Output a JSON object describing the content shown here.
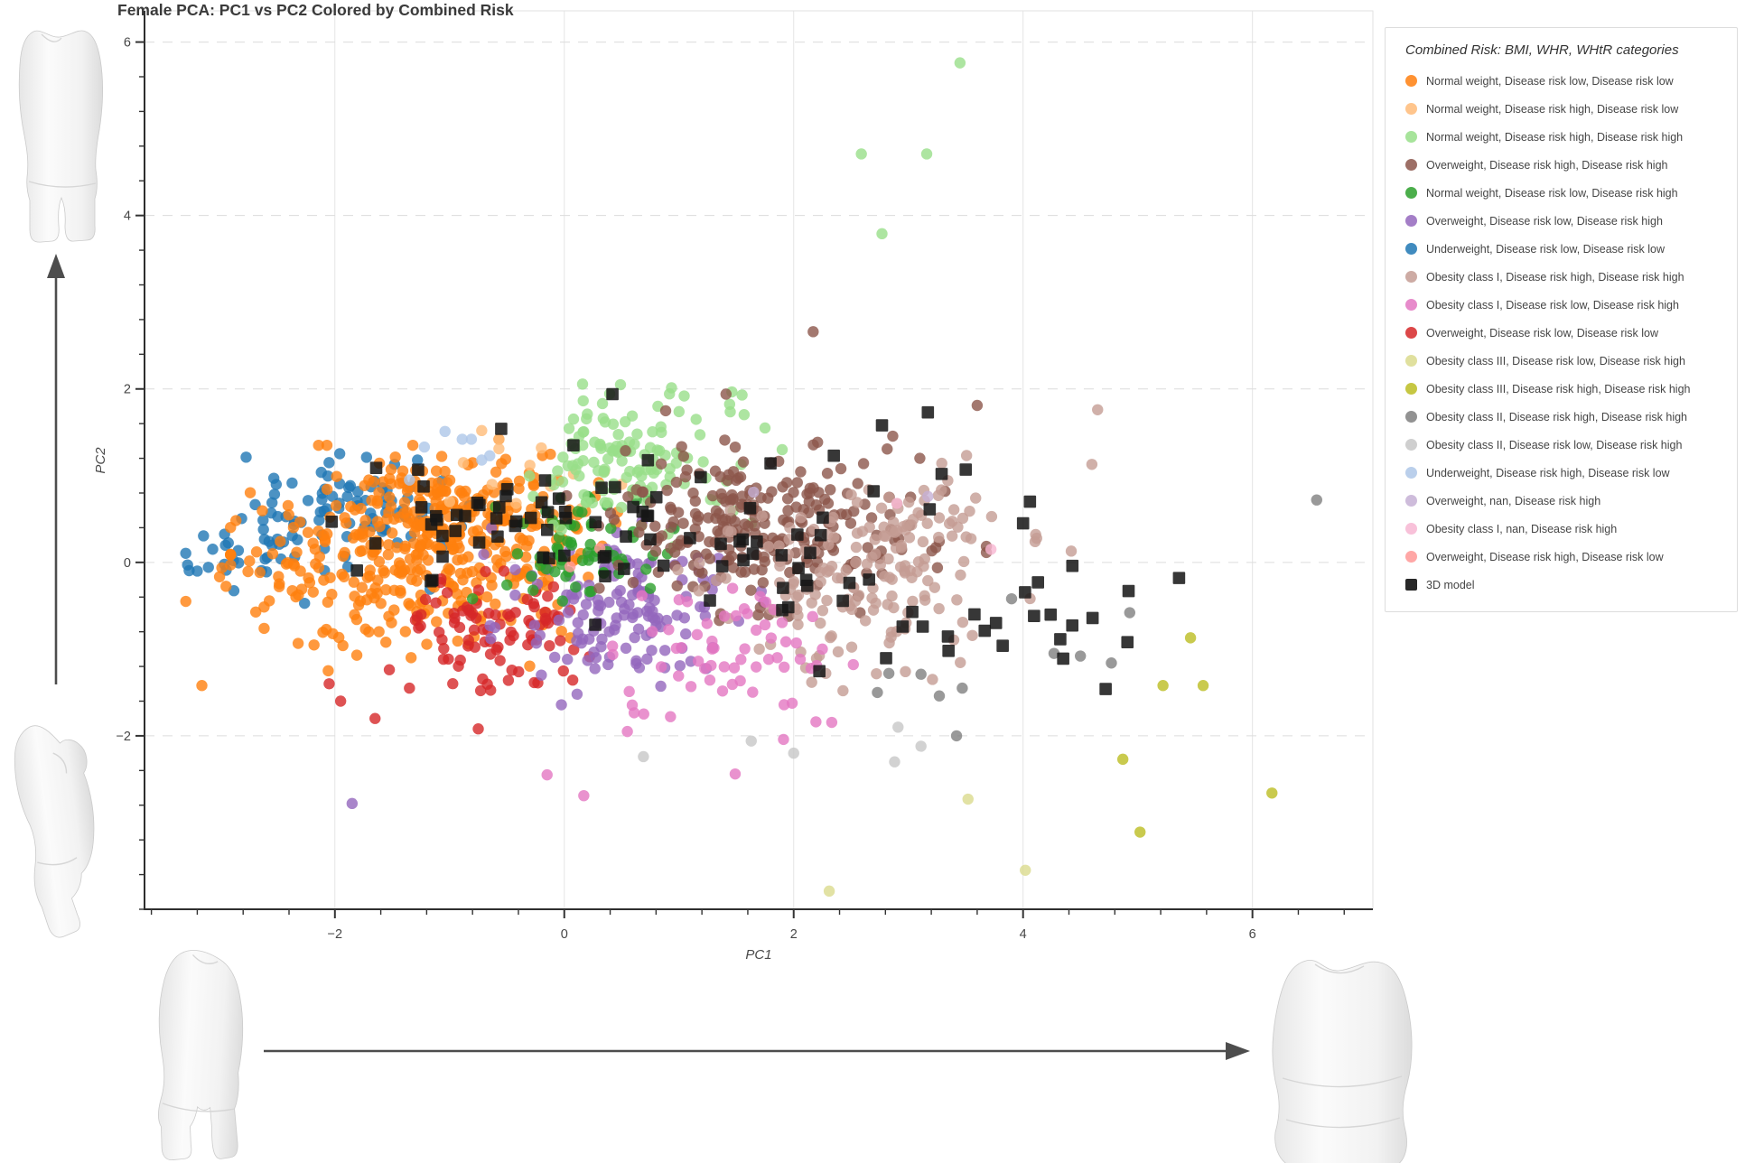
{
  "chart_data": {
    "type": "scatter",
    "title": "Female PCA: PC1 vs PC2 Colored by Combined Risk",
    "legend_title": "Combined Risk: BMI, WHR, WHtR categories",
    "legend_position": "right",
    "grid": "on",
    "x_axis": {
      "label": "PC1",
      "range": [
        -3.66,
        7.05
      ],
      "minor_tick_step": 0.4,
      "grid_style": "solid",
      "major_ticks": [
        {
          "v": -2,
          "label": "−2"
        },
        {
          "v": 0,
          "label": "0"
        },
        {
          "v": 2,
          "label": "2"
        },
        {
          "v": 4,
          "label": "4"
        },
        {
          "v": 6,
          "label": "6"
        }
      ]
    },
    "y_axis": {
      "label": "PC2",
      "range": [
        -4.0,
        6.36
      ],
      "minor_tick_step": 0.4,
      "grid_style": "dashed",
      "major_ticks": [
        {
          "v": 6,
          "label": "6"
        },
        {
          "v": 4,
          "label": "4"
        },
        {
          "v": 2,
          "label": "2"
        },
        {
          "v": 0,
          "label": "0"
        },
        {
          "v": -2,
          "label": "−2"
        }
      ]
    },
    "marker_opacity": 0.8,
    "series": [
      {
        "key": "normal_low_low",
        "label": "Normal weight, Disease risk low, Disease risk low",
        "color": "#ff7f0e",
        "marker": "circle",
        "clusters": [
          [
            250,
            -1.35,
            0.05,
            0.6,
            0.5
          ],
          [
            120,
            -0.55,
            0.3,
            0.45,
            0.45
          ],
          [
            55,
            -1.05,
            0.85,
            0.5,
            0.25
          ],
          [
            30,
            -2.35,
            -0.1,
            0.33,
            0.35
          ]
        ],
        "points": [
          [
            -3.16,
            -1.42
          ],
          [
            -3.3,
            -0.45
          ],
          [
            -0.57,
            1.42
          ],
          [
            0.3,
            0.92
          ],
          [
            0.45,
            0.45
          ]
        ]
      },
      {
        "key": "normal_high_low",
        "label": "Normal weight, Disease risk high, Disease risk low",
        "color": "#ffbb78",
        "marker": "circle",
        "clusters": [],
        "points": [
          [
            -0.57,
            1.42
          ],
          [
            -0.57,
            1.31
          ],
          [
            -0.63,
            0.9
          ],
          [
            -0.88,
            1.15
          ],
          [
            -0.3,
            1.12
          ],
          [
            -0.12,
            0.88
          ],
          [
            0.08,
            1.02
          ],
          [
            -0.2,
            1.32
          ],
          [
            0.35,
            1.05
          ],
          [
            -0.42,
            0.68
          ],
          [
            0.15,
            0.62
          ],
          [
            -0.72,
            1.52
          ],
          [
            0.5,
            0.9
          ],
          [
            -1.0,
            0.7
          ]
        ]
      },
      {
        "key": "normal_high_high",
        "label": "Normal weight, Disease risk high, Disease risk high",
        "color": "#98df8a",
        "marker": "circle",
        "clusters": [
          [
            115,
            0.55,
            1.12,
            0.42,
            0.36
          ],
          [
            14,
            0.95,
            1.8,
            0.5,
            0.18
          ]
        ],
        "points": [
          [
            3.45,
            5.76
          ],
          [
            2.59,
            4.71
          ],
          [
            3.16,
            4.71
          ],
          [
            2.77,
            3.79
          ],
          [
            1.55,
            1.93
          ],
          [
            1.75,
            1.55
          ],
          [
            1.9,
            1.3
          ]
        ]
      },
      {
        "key": "over_high_high",
        "label": "Overweight, Disease risk high, Disease risk high",
        "color": "#8c564b",
        "marker": "circle",
        "clusters": [
          [
            140,
            1.45,
            0.5,
            0.55,
            0.35
          ],
          [
            90,
            2.25,
            0.18,
            0.55,
            0.38
          ],
          [
            22,
            1.7,
            1.12,
            0.5,
            0.25
          ]
        ],
        "points": [
          [
            2.17,
            2.66
          ],
          [
            3.6,
            1.81
          ],
          [
            1.41,
            1.94
          ],
          [
            3.1,
            1.2
          ],
          [
            3.32,
            0.82
          ]
        ]
      },
      {
        "key": "normal_low_high",
        "label": "Normal weight, Disease risk low, Disease risk high",
        "color": "#2ca02c",
        "marker": "circle",
        "clusters": [
          [
            60,
            0.1,
            0.22,
            0.33,
            0.32
          ]
        ],
        "points": [
          [
            -0.8,
            -0.42
          ],
          [
            -0.5,
            -0.26
          ],
          [
            -0.6,
            0.64
          ],
          [
            0.75,
            -0.3
          ],
          [
            0.9,
            0.1
          ]
        ]
      },
      {
        "key": "over_low_high",
        "label": "Overweight, Disease risk low, Disease risk high",
        "color": "#9467bd",
        "marker": "circle",
        "clusters": [
          [
            140,
            0.45,
            -0.55,
            0.5,
            0.42
          ]
        ],
        "points": [
          [
            -1.85,
            -2.78
          ],
          [
            -0.2,
            -1.3
          ],
          [
            1.3,
            -0.2
          ]
        ]
      },
      {
        "key": "under_low_low",
        "label": "Underweight, Disease risk low, Disease risk low",
        "color": "#1f77b4",
        "marker": "circle",
        "clusters": [
          [
            80,
            -1.95,
            0.6,
            0.45,
            0.3
          ],
          [
            26,
            -2.8,
            0.1,
            0.28,
            0.22
          ]
        ],
        "points": [
          [
            -1.28,
            1.18
          ],
          [
            -1.48,
            1.13
          ],
          [
            -3.2,
            -0.1
          ],
          [
            -1.17,
            -0.31
          ]
        ]
      },
      {
        "key": "ob1_high_high",
        "label": "Obesity class I, Disease risk high, Disease risk high",
        "color": "#c49c94",
        "marker": "circle",
        "clusters": [
          [
            125,
            2.55,
            -0.25,
            0.6,
            0.5
          ],
          [
            55,
            3.1,
            0.4,
            0.5,
            0.32
          ]
        ],
        "points": [
          [
            4.65,
            1.76
          ],
          [
            4.6,
            1.13
          ],
          [
            4.42,
            0.13
          ],
          [
            2.28,
            -1.28
          ],
          [
            2.43,
            -1.48
          ],
          [
            1.7,
            -1.0
          ]
        ]
      },
      {
        "key": "ob1_low_high",
        "label": "Obesity class I, Disease risk low, Disease risk high",
        "color": "#e377c2",
        "marker": "circle",
        "clusters": [
          [
            60,
            1.35,
            -1.1,
            0.45,
            0.42
          ]
        ],
        "points": [
          [
            0.17,
            -2.69
          ],
          [
            1.49,
            -2.44
          ],
          [
            2.2,
            -1.19
          ],
          [
            1.75,
            -0.72
          ],
          [
            2.25,
            -1.0
          ],
          [
            0.55,
            -1.95
          ],
          [
            -0.15,
            -2.45
          ]
        ]
      },
      {
        "key": "over_low_low",
        "label": "Overweight, Disease risk low, Disease risk low",
        "color": "#d62728",
        "marker": "circle",
        "clusters": [
          [
            90,
            -0.5,
            -0.85,
            0.42,
            0.36
          ]
        ],
        "points": [
          [
            -0.75,
            -1.92
          ],
          [
            -1.95,
            -1.6
          ],
          [
            -1.65,
            -1.8
          ],
          [
            -1.35,
            -1.45
          ],
          [
            -2.05,
            -1.4
          ]
        ]
      },
      {
        "key": "ob3_low_high",
        "label": "Obesity class III, Disease risk low, Disease risk high",
        "color": "#dbdb8d",
        "marker": "circle",
        "clusters": [],
        "points": [
          [
            3.52,
            -2.73
          ],
          [
            4.02,
            -3.55
          ],
          [
            2.31,
            -3.79
          ]
        ]
      },
      {
        "key": "ob3_high_high",
        "label": "Obesity class III, Disease risk high, Disease risk high",
        "color": "#bcbd22",
        "marker": "circle",
        "clusters": [],
        "points": [
          [
            5.46,
            -0.87
          ],
          [
            5.22,
            -1.42
          ],
          [
            5.57,
            -1.42
          ],
          [
            4.87,
            -2.27
          ],
          [
            5.02,
            -3.11
          ],
          [
            6.17,
            -2.66
          ]
        ]
      },
      {
        "key": "ob2_high_high",
        "label": "Obesity class II, Disease risk high, Disease risk high",
        "color": "#7f7f7f",
        "marker": "circle",
        "clusters": [],
        "points": [
          [
            6.56,
            0.72
          ],
          [
            4.93,
            -0.58
          ],
          [
            4.27,
            -1.05
          ],
          [
            4.5,
            -1.08
          ],
          [
            4.77,
            -1.16
          ],
          [
            3.9,
            -0.42
          ],
          [
            2.83,
            -1.28
          ],
          [
            3.11,
            -1.29
          ],
          [
            2.73,
            -1.5
          ],
          [
            3.27,
            -1.54
          ],
          [
            3.47,
            -1.45
          ],
          [
            3.42,
            -2.0
          ]
        ]
      },
      {
        "key": "ob2_low_high",
        "label": "Obesity class II, Disease risk low, Disease risk high",
        "color": "#c7c7c7",
        "marker": "circle",
        "clusters": [],
        "points": [
          [
            2.0,
            -2.2
          ],
          [
            2.91,
            -1.9
          ],
          [
            3.11,
            -2.12
          ],
          [
            2.88,
            -2.3
          ],
          [
            0.69,
            -2.24
          ],
          [
            1.63,
            -2.06
          ]
        ]
      },
      {
        "key": "under_high_low",
        "label": "Underweight, Disease risk high, Disease risk low",
        "color": "#aec7e8",
        "marker": "circle",
        "clusters": [],
        "points": [
          [
            -1.04,
            1.51
          ],
          [
            -0.89,
            1.42
          ],
          [
            -0.81,
            1.42
          ],
          [
            -0.65,
            1.23
          ],
          [
            -1.22,
            1.33
          ],
          [
            -0.72,
            1.18
          ],
          [
            -1.35,
            0.95
          ]
        ]
      },
      {
        "key": "over_nan_high",
        "label": "Overweight, nan, Disease risk high",
        "color": "#c5b0d5",
        "marker": "circle",
        "clusters": [],
        "points": [
          [
            3.17,
            0.76
          ],
          [
            1.65,
            0.81
          ]
        ]
      },
      {
        "key": "ob1_nan_high",
        "label": "Obesity class I, nan, Disease risk high",
        "color": "#f7b6d2",
        "marker": "circle",
        "clusters": [],
        "points": [
          [
            3.72,
            0.15
          ],
          [
            2.9,
            0.68
          ]
        ]
      },
      {
        "key": "over_high_low",
        "label": "Overweight, Disease risk high, Disease risk low",
        "color": "#ff9896",
        "marker": "circle",
        "clusters": [],
        "points": [
          [
            0.31,
            0.16
          ],
          [
            0.05,
            -0.05
          ]
        ]
      },
      {
        "key": "model3d",
        "label": "3D model",
        "color": "#161616",
        "marker": "square",
        "clusters": [
          [
            26,
            -0.7,
            0.55,
            0.38,
            0.3
          ],
          [
            8,
            -1.3,
            0.35,
            0.28,
            0.35
          ],
          [
            16,
            0.35,
            0.55,
            0.45,
            0.42
          ],
          [
            18,
            1.5,
            0.2,
            0.5,
            0.45
          ],
          [
            16,
            2.6,
            -0.35,
            0.5,
            0.45
          ],
          [
            10,
            4.35,
            -0.55,
            0.4,
            0.4
          ]
        ],
        "points": [
          [
            0.42,
            1.94
          ],
          [
            3.17,
            1.73
          ],
          [
            2.77,
            1.58
          ],
          [
            2.35,
            1.23
          ],
          [
            3.5,
            1.07
          ],
          [
            3.29,
            1.02
          ],
          [
            4.06,
            0.7
          ],
          [
            5.36,
            -0.18
          ],
          [
            4.92,
            -0.33
          ],
          [
            4.72,
            -1.46
          ],
          [
            4.35,
            -1.11
          ],
          [
            4.91,
            -0.92
          ],
          [
            -1.64,
            1.09
          ],
          [
            -0.55,
            1.54
          ],
          [
            0.08,
            1.35
          ],
          [
            4.0,
            0.45
          ],
          [
            1.9,
            -0.55
          ],
          [
            2.95,
            -0.74
          ],
          [
            3.35,
            -1.02
          ],
          [
            4.43,
            -0.04
          ],
          [
            4.13,
            -0.23
          ],
          [
            0.27,
            -0.72
          ],
          [
            1.27,
            -0.44
          ]
        ]
      }
    ]
  }
}
